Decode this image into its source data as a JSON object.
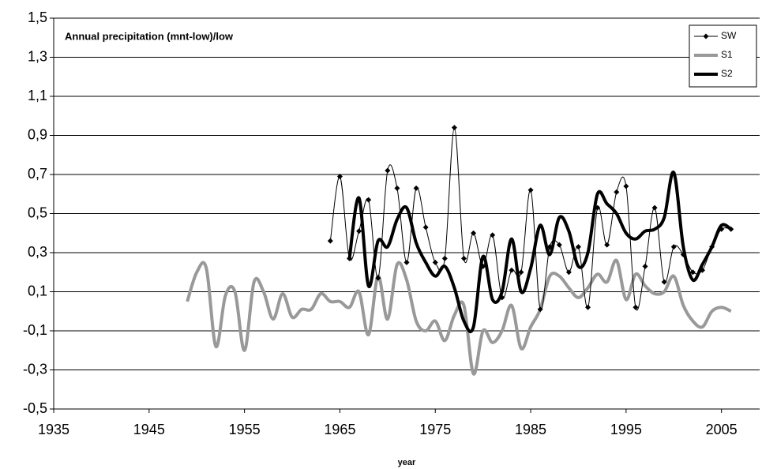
{
  "chart_data": {
    "type": "line",
    "title": "Annual precipitation (mnt-low)/low",
    "x_label": "year",
    "x": [
      1949,
      1950,
      1951,
      1952,
      1953,
      1954,
      1955,
      1956,
      1957,
      1958,
      1959,
      1960,
      1961,
      1962,
      1963,
      1964,
      1965,
      1966,
      1967,
      1968,
      1969,
      1970,
      1971,
      1972,
      1973,
      1974,
      1975,
      1976,
      1977,
      1978,
      1979,
      1980,
      1981,
      1982,
      1983,
      1984,
      1985,
      1986,
      1987,
      1988,
      1989,
      1990,
      1991,
      1992,
      1993,
      1994,
      1995,
      1996,
      1997,
      1998,
      1999,
      2000,
      2001,
      2002,
      2003,
      2004,
      2005,
      2006
    ],
    "series": [
      {
        "name": "SW",
        "color": "#000000",
        "width": 1,
        "marker": true,
        "values": [
          null,
          null,
          null,
          null,
          null,
          null,
          null,
          null,
          null,
          null,
          null,
          null,
          null,
          null,
          null,
          0.36,
          0.69,
          0.27,
          0.41,
          0.57,
          0.17,
          0.72,
          0.63,
          0.25,
          0.63,
          0.43,
          0.25,
          0.27,
          0.94,
          0.27,
          0.4,
          0.23,
          0.39,
          0.07,
          0.21,
          0.2,
          0.62,
          0.01,
          0.33,
          0.34,
          0.2,
          0.33,
          0.02,
          0.53,
          0.34,
          0.61,
          0.64,
          0.02,
          0.23,
          0.53,
          0.15,
          0.33,
          0.29,
          0.2,
          0.21,
          0.33,
          0.42,
          0.42
        ]
      },
      {
        "name": "S1",
        "color": "#999999",
        "width": 4,
        "marker": false,
        "values": [
          0.05,
          0.2,
          0.22,
          -0.18,
          0.08,
          0.1,
          -0.2,
          0.15,
          0.1,
          -0.04,
          0.09,
          -0.03,
          0.01,
          0.01,
          0.09,
          0.05,
          0.05,
          0.02,
          0.1,
          -0.12,
          0.18,
          -0.04,
          0.24,
          0.16,
          -0.05,
          -0.1,
          -0.05,
          -0.15,
          -0.02,
          0.03,
          -0.32,
          -0.1,
          -0.16,
          -0.1,
          0.03,
          -0.19,
          -0.08,
          0.01,
          0.18,
          0.18,
          0.12,
          0.07,
          0.12,
          0.19,
          0.15,
          0.26,
          0.06,
          0.19,
          0.13,
          0.09,
          0.1,
          0.18,
          0.03,
          -0.05,
          -0.08,
          0.0,
          0.02,
          0.0
        ]
      },
      {
        "name": "S2",
        "color": "#000000",
        "width": 4,
        "marker": false,
        "values": [
          null,
          null,
          null,
          null,
          null,
          null,
          null,
          null,
          null,
          null,
          null,
          null,
          null,
          null,
          null,
          null,
          null,
          0.27,
          0.58,
          0.13,
          0.36,
          0.33,
          0.47,
          0.53,
          0.35,
          0.25,
          0.18,
          0.23,
          0.12,
          -0.05,
          -0.08,
          0.28,
          0.06,
          0.1,
          0.37,
          0.1,
          0.22,
          0.44,
          0.29,
          0.48,
          0.41,
          0.23,
          0.3,
          0.6,
          0.55,
          0.5,
          0.4,
          0.37,
          0.41,
          0.42,
          0.48,
          0.71,
          0.33,
          0.16,
          0.24,
          0.33,
          0.44,
          0.42
        ]
      }
    ],
    "xlim": [
      1935,
      2009
    ],
    "xticks": [
      1935,
      1945,
      1955,
      1965,
      1975,
      1985,
      1995,
      2005
    ],
    "ylim": [
      -0.5,
      1.5
    ],
    "yticks": [
      {
        "value": -0.5,
        "label": "-0,5"
      },
      {
        "value": -0.3,
        "label": "-0,3"
      },
      {
        "value": -0.1,
        "label": "-0,1"
      },
      {
        "value": 0.1,
        "label": "0,1"
      },
      {
        "value": 0.3,
        "label": "0,3"
      },
      {
        "value": 0.5,
        "label": "0,5"
      },
      {
        "value": 0.7,
        "label": "0,7"
      },
      {
        "value": 0.9,
        "label": "0,9"
      },
      {
        "value": 1.1,
        "label": "1,1"
      },
      {
        "value": 1.3,
        "label": "1,3"
      },
      {
        "value": 1.5,
        "label": "1,5"
      }
    ],
    "grid": true,
    "legend": "top-right"
  }
}
